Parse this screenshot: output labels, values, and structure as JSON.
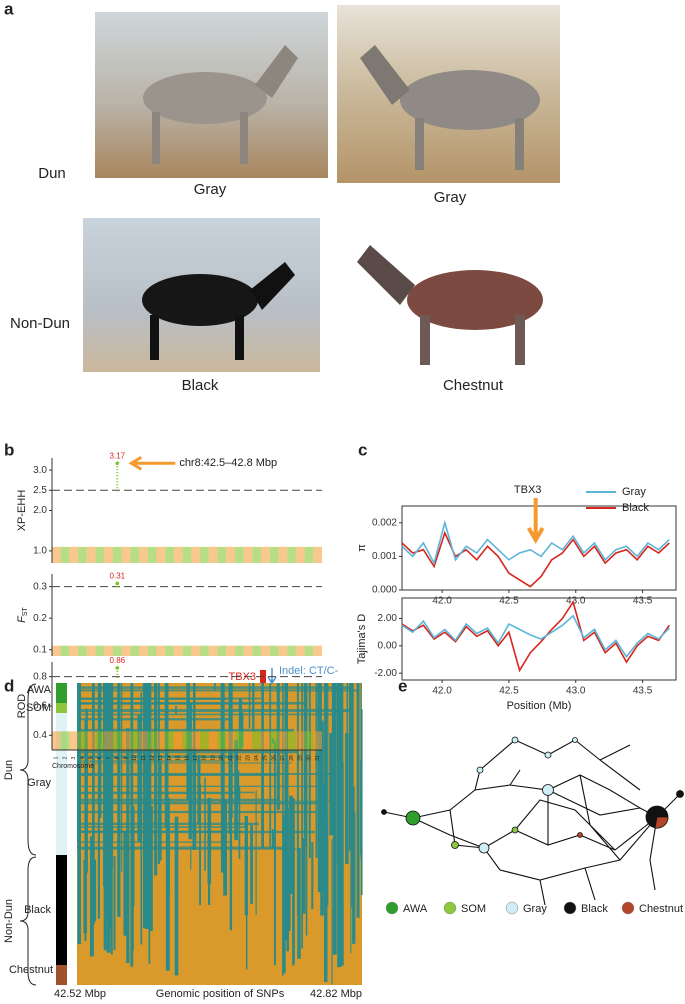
{
  "panel_labels": [
    "a",
    "b",
    "c",
    "d",
    "e"
  ],
  "panel_a": {
    "rows": [
      "Dun",
      "Non-Dun"
    ],
    "captions": [
      "Gray",
      "Gray",
      "Black",
      "Chestnut"
    ]
  },
  "chart_data": [
    {
      "type": "manhattan",
      "ylabel": "XP-EHH",
      "ylim": [
        0.7,
        3.3
      ],
      "yticks": [
        {
          "value": 1,
          "label": "1.0"
        },
        {
          "value": 2,
          "label": "2.0"
        },
        2.5,
        {
          "value": 3,
          "label": "3.0"
        }
      ],
      "threshold": 2.5,
      "peak": 3.17,
      "annotation": "chr8:42.5–42.8 Mbp",
      "colors": [
        "#f39b2f",
        "#7cc224"
      ]
    },
    {
      "type": "manhattan",
      "ylabel": "F",
      "ylabel_sub": "ST",
      "ylim": [
        0.08,
        0.34
      ],
      "yticks": [
        0.1,
        0.2,
        0.3
      ],
      "threshold": 0.3,
      "peak": 0.31,
      "colors": [
        "#f39b2f",
        "#7cc224"
      ]
    },
    {
      "type": "manhattan",
      "ylabel": "ROD",
      "ylim": [
        0.3,
        0.9
      ],
      "yticks": [
        0.4,
        0.6,
        0.8
      ],
      "threshold": 0.8,
      "peak": 0.86,
      "colors": [
        "#f39b2f",
        "#7cc224"
      ],
      "xlabel": "Chromosome",
      "categories": [
        "1",
        "2",
        "3",
        "4",
        "5",
        "6",
        "7",
        "8",
        "9",
        "10",
        "11",
        "12",
        "13",
        "14",
        "15",
        "16",
        "17",
        "18",
        "19",
        "20",
        "21",
        "22",
        "23",
        "24",
        "25",
        "26",
        "27",
        "28",
        "29",
        "30",
        "31"
      ]
    },
    {
      "type": "line",
      "ylabel": "π",
      "annotation": "TBX3",
      "annotation_x": 42.7,
      "x": [
        41.7,
        41.78,
        41.86,
        41.94,
        42.02,
        42.1,
        42.18,
        42.26,
        42.34,
        42.42,
        42.5,
        42.58,
        42.66,
        42.74,
        42.82,
        42.9,
        42.98,
        43.06,
        43.14,
        43.22,
        43.3,
        43.38,
        43.46,
        43.54,
        43.62,
        43.7
      ],
      "xlim": [
        41.7,
        43.75
      ],
      "xticks": [
        {
          "value": 42,
          "label": "42.0"
        },
        42.5,
        {
          "value": 43,
          "label": "43.0"
        },
        43.5
      ],
      "ylim": [
        0,
        0.0025
      ],
      "yticks": [
        {
          "value": 0,
          "label": "0.000"
        },
        0.001,
        0.002
      ],
      "series": [
        {
          "name": "Gray",
          "color": "#5bb5d8",
          "values": [
            0.0013,
            0.001,
            0.0014,
            0.0008,
            0.002,
            0.0009,
            0.0013,
            0.0011,
            0.0015,
            0.0012,
            0.0009,
            0.0011,
            0.0012,
            0.001,
            0.0014,
            0.0012,
            0.0016,
            0.0011,
            0.0014,
            0.0009,
            0.0012,
            0.0013,
            0.001,
            0.0014,
            0.0012,
            0.0015
          ]
        },
        {
          "name": "Black",
          "color": "#d7261e",
          "values": [
            0.0014,
            0.0011,
            0.0012,
            0.0007,
            0.0017,
            0.001,
            0.0012,
            0.0009,
            0.0013,
            0.001,
            0.0005,
            0.0003,
            0.0001,
            0.0004,
            0.0009,
            0.0011,
            0.0015,
            0.001,
            0.0013,
            0.0008,
            0.0011,
            0.0012,
            0.0009,
            0.0013,
            0.0011,
            0.0014
          ]
        }
      ]
    },
    {
      "type": "line",
      "ylabel": "Tajima's D",
      "xlabel": "Position (Mb)",
      "x": [
        41.7,
        41.78,
        41.86,
        41.94,
        42.02,
        42.1,
        42.18,
        42.26,
        42.34,
        42.42,
        42.5,
        42.58,
        42.66,
        42.74,
        42.82,
        42.9,
        42.98,
        43.06,
        43.14,
        43.22,
        43.3,
        43.38,
        43.46,
        43.54,
        43.62,
        43.7
      ],
      "xlim": [
        41.7,
        43.75
      ],
      "xticks": [
        {
          "value": 42,
          "label": "42.0"
        },
        42.5,
        {
          "value": 43,
          "label": "43.0"
        },
        43.5
      ],
      "ylim": [
        -2.5,
        3.5
      ],
      "yticks": [
        {
          "value": -2,
          "label": "-2.00"
        },
        {
          "value": 0,
          "label": "0.00"
        },
        {
          "value": 2,
          "label": "2.00"
        }
      ],
      "series": [
        {
          "name": "Gray",
          "color": "#5bb5d8",
          "values": [
            1.5,
            1.0,
            1.8,
            0.6,
            1.2,
            0.4,
            1.6,
            0.9,
            1.3,
            0.2,
            1.6,
            1.2,
            0.8,
            0.5,
            1.0,
            1.5,
            2.2,
            0.6,
            1.2,
            -0.3,
            0.4,
            -0.8,
            0.2,
            0.9,
            0.5,
            1.3
          ]
        },
        {
          "name": "Black",
          "color": "#d7261e",
          "values": [
            1.6,
            1.1,
            1.5,
            0.5,
            1.0,
            0.3,
            1.4,
            0.7,
            1.1,
            0.0,
            1.0,
            -1.8,
            -0.5,
            0.3,
            1.2,
            2.0,
            3.2,
            0.4,
            1.0,
            -0.5,
            0.2,
            -1.2,
            0.0,
            0.7,
            0.4,
            1.5
          ]
        }
      ]
    }
  ],
  "panel_d": {
    "groups": [
      "Dun",
      "Non-Dun"
    ],
    "populations": [
      "AWA",
      "SOM",
      "Gray",
      "Black",
      "Chestnut"
    ],
    "gene": "TBX3",
    "indel": "Indel: CT/C-",
    "x_start": "42.52 Mbp",
    "xlabel": "Genomic position of SNPs",
    "x_end": "42.82 Mbp"
  },
  "panel_e": {
    "legend": [
      {
        "name": "AWA",
        "color": "#2f9e2f"
      },
      {
        "name": "SOM",
        "color": "#8dc63f"
      },
      {
        "name": "Gray",
        "color": "#cdeef5"
      },
      {
        "name": "Black",
        "color": "#111111"
      },
      {
        "name": "Chestnut",
        "color": "#b5452a"
      }
    ]
  }
}
